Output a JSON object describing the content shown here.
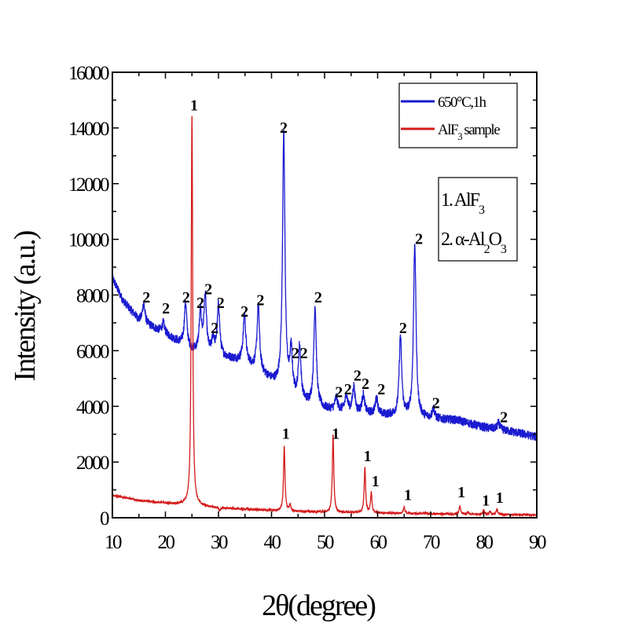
{
  "chart_data": {
    "type": "line",
    "xlabel": "2θ(degree)",
    "ylabel": "Intensity (a.u.)",
    "xlim": [
      10,
      90
    ],
    "ylim": [
      0,
      16000
    ],
    "xticks": [
      "10",
      "20",
      "30",
      "40",
      "50",
      "60",
      "70",
      "80",
      "90"
    ],
    "yticks": [
      "0",
      "2000",
      "4000",
      "6000",
      "8000",
      "10000",
      "12000",
      "14000",
      "16000"
    ],
    "grid": false,
    "legend_position": "top-right",
    "legend": [
      {
        "label": "650°C,1h",
        "color": "#1a1ad0"
      },
      {
        "label": "AlF",
        "sub": "3",
        "suffix": " sample",
        "color": "#d41a1a"
      }
    ],
    "key": {
      "line1": {
        "text": "1. AlF",
        "sub": "3"
      },
      "line2": {
        "text": "2. α-Al",
        "sub1": "2",
        "mid": "O",
        "sub2": "3"
      }
    },
    "series": [
      {
        "name": "650°C,1h",
        "color": "#1a1ad0",
        "background": [
          [
            10,
            8600
          ],
          [
            12,
            7800
          ],
          [
            15,
            7100
          ],
          [
            20,
            6600
          ],
          [
            25,
            6000
          ],
          [
            30,
            5800
          ],
          [
            35,
            5600
          ],
          [
            40,
            4900
          ],
          [
            45,
            4200
          ],
          [
            50,
            3900
          ],
          [
            60,
            3700
          ],
          [
            70,
            3550
          ],
          [
            75,
            3500
          ],
          [
            80,
            3250
          ],
          [
            85,
            3100
          ],
          [
            90,
            2900
          ]
        ],
        "peaks": [
          [
            15.9,
            7700
          ],
          [
            19.6,
            7000
          ],
          [
            23.8,
            7700
          ],
          [
            26.6,
            7300
          ],
          [
            27.5,
            7900
          ],
          [
            29.0,
            6400
          ],
          [
            30.0,
            7600
          ],
          [
            34.9,
            7300
          ],
          [
            37.5,
            7600
          ],
          [
            42.3,
            13700
          ],
          [
            43.7,
            5900
          ],
          [
            45.3,
            6100
          ],
          [
            48.2,
            7600
          ],
          [
            52.2,
            4300
          ],
          [
            54.1,
            4400
          ],
          [
            55.5,
            4700
          ],
          [
            57.3,
            4400
          ],
          [
            59.8,
            4300
          ],
          [
            64.3,
            6500
          ],
          [
            67.0,
            9800
          ],
          [
            70.5,
            3900
          ],
          [
            82.8,
            3400
          ]
        ]
      },
      {
        "name": "AlF3 sample",
        "color": "#d41a1a",
        "background": [
          [
            10,
            800
          ],
          [
            15,
            620
          ],
          [
            20,
            520
          ],
          [
            25,
            450
          ],
          [
            30,
            350
          ],
          [
            40,
            260
          ],
          [
            50,
            200
          ],
          [
            60,
            170
          ],
          [
            70,
            140
          ],
          [
            90,
            100
          ]
        ],
        "peaks": [
          [
            25.0,
            14400
          ],
          [
            30.2,
            250
          ],
          [
            35.3,
            320
          ],
          [
            42.4,
            2600
          ],
          [
            43.5,
            450
          ],
          [
            51.6,
            3000
          ],
          [
            57.6,
            1800
          ],
          [
            58.8,
            900
          ],
          [
            65.0,
            380
          ],
          [
            69.0,
            200
          ],
          [
            75.5,
            420
          ],
          [
            77.0,
            200
          ],
          [
            80.0,
            280
          ],
          [
            81.2,
            220
          ],
          [
            82.5,
            320
          ]
        ]
      }
    ],
    "annotations": [
      {
        "label": "1",
        "x": 25.4,
        "y": 14800
      },
      {
        "label": "2",
        "x": 42.3,
        "y": 14000
      },
      {
        "label": "2",
        "x": 16.4,
        "y": 7900
      },
      {
        "label": "2",
        "x": 20.1,
        "y": 7500
      },
      {
        "label": "2",
        "x": 23.9,
        "y": 7900
      },
      {
        "label": "2",
        "x": 26.6,
        "y": 7700
      },
      {
        "label": "2",
        "x": 28.1,
        "y": 8200
      },
      {
        "label": "2",
        "x": 30.4,
        "y": 7700
      },
      {
        "label": "2",
        "x": 29.3,
        "y": 6800
      },
      {
        "label": "2",
        "x": 34.9,
        "y": 7400
      },
      {
        "label": "2",
        "x": 37.9,
        "y": 7800
      },
      {
        "label": "2",
        "x": 48.8,
        "y": 7900
      },
      {
        "label": "2",
        "x": 44.5,
        "y": 5900
      },
      {
        "label": "2",
        "x": 46.1,
        "y": 5900
      },
      {
        "label": "2",
        "x": 52.7,
        "y": 4500
      },
      {
        "label": "2",
        "x": 54.4,
        "y": 4600
      },
      {
        "label": "2",
        "x": 56.2,
        "y": 5100
      },
      {
        "label": "2",
        "x": 57.7,
        "y": 4800
      },
      {
        "label": "2",
        "x": 60.7,
        "y": 4600
      },
      {
        "label": "2",
        "x": 64.8,
        "y": 6800
      },
      {
        "label": "2",
        "x": 67.8,
        "y": 10000
      },
      {
        "label": "2",
        "x": 71.0,
        "y": 4100
      },
      {
        "label": "2",
        "x": 83.8,
        "y": 3600
      },
      {
        "label": "1",
        "x": 42.7,
        "y": 3000
      },
      {
        "label": "1",
        "x": 52.1,
        "y": 3000
      },
      {
        "label": "1",
        "x": 58.1,
        "y": 2200
      },
      {
        "label": "1",
        "x": 59.6,
        "y": 1300
      },
      {
        "label": "1",
        "x": 65.7,
        "y": 800
      },
      {
        "label": "1",
        "x": 75.8,
        "y": 900
      },
      {
        "label": "1",
        "x": 80.4,
        "y": 600
      },
      {
        "label": "1",
        "x": 83.0,
        "y": 700
      }
    ]
  }
}
